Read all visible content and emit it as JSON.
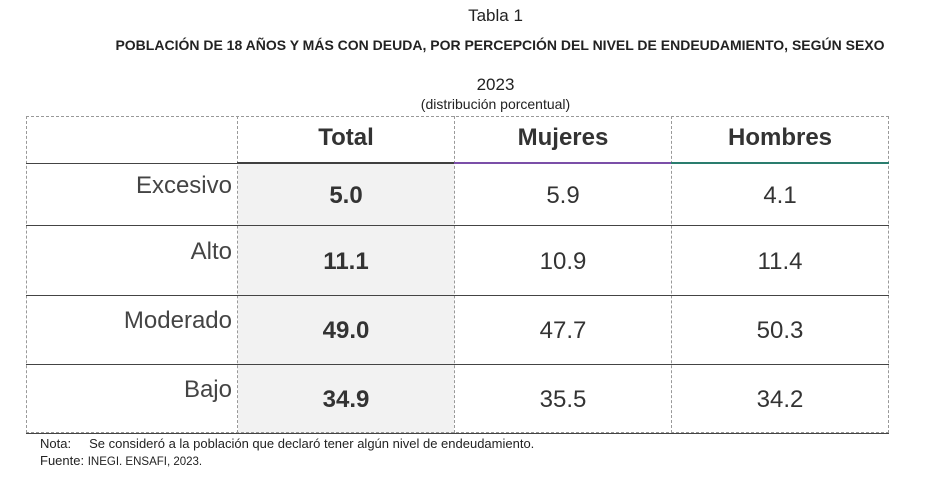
{
  "title": "Tabla 1",
  "subtitle": "POBLACIÓN DE 18 AÑOS Y MÁS CON DEUDA, POR PERCEPCIÓN DEL NIVEL DE ENDEUDAMIENTO, SEGÚN SEXO",
  "year": "2023",
  "unit": "(distribución porcentual)",
  "columns": [
    "Total",
    "Mujeres",
    "Hombres"
  ],
  "colors": {
    "total": "#404040",
    "mujeres": "#7b4fa8",
    "hombres": "#2a7d6e",
    "total_bg": "#f2f2f2"
  },
  "rows": [
    {
      "label": "Excesivo",
      "total": "5.0",
      "mujeres": "5.9",
      "hombres": "4.1"
    },
    {
      "label": "Alto",
      "total": "11.1",
      "mujeres": "10.9",
      "hombres": "11.4"
    },
    {
      "label": "Moderado",
      "total": "49.0",
      "mujeres": "47.7",
      "hombres": "50.3"
    },
    {
      "label": "Bajo",
      "total": "34.9",
      "mujeres": "35.5",
      "hombres": "34.2"
    }
  ],
  "note_label": "Nota:",
  "note": "Se consideró a la población que declaró tener algún nivel de endeudamiento.",
  "source_label": "Fuente:",
  "source": "INEGI. ENSAFI, 2023."
}
